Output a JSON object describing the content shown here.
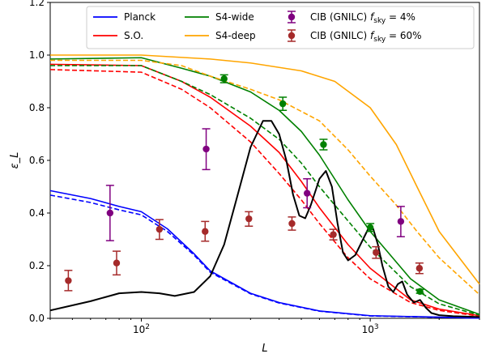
{
  "chart_data": {
    "type": "line",
    "xlabel": "L",
    "ylabel": "ε_L",
    "xscale": "log",
    "xlim": [
      40,
      3000
    ],
    "ylim": [
      0,
      1.2
    ],
    "x_ticks": [
      {
        "value": 100,
        "label": "10^2"
      },
      {
        "value": 1000,
        "label": "10^3"
      }
    ],
    "y_ticks": [
      0.0,
      0.2,
      0.4,
      0.6,
      0.8,
      1.0,
      1.2
    ],
    "grid": false,
    "legend_position": "top",
    "colors": {
      "Planck": "#0000ff",
      "S.O.": "#ff0000",
      "S4-wide": "#008000",
      "S4-deep": "#ffa500",
      "black": "#000000",
      "gnilc4": "#800080",
      "gnilc60": "#a52a2a"
    },
    "legend": [
      {
        "label": "Planck",
        "kind": "line",
        "color": "#0000ff"
      },
      {
        "label": "S.O.",
        "kind": "line",
        "color": "#ff0000"
      },
      {
        "label": "S4-wide",
        "kind": "line",
        "color": "#008000"
      },
      {
        "label": "S4-deep",
        "kind": "line",
        "color": "#ffa500"
      },
      {
        "label": "CIB (GNILC) f_sky = 4%",
        "kind": "errorbar",
        "color": "#800080"
      },
      {
        "label": "CIB (GNILC) f_sky = 60%",
        "kind": "errorbar",
        "color": "#a52a2a"
      }
    ],
    "series": [
      {
        "name": "Planck",
        "style": "solid",
        "color": "#0000ff",
        "points": [
          [
            40,
            0.485
          ],
          [
            60,
            0.455
          ],
          [
            80,
            0.425
          ],
          [
            100,
            0.405
          ],
          [
            130,
            0.34
          ],
          [
            170,
            0.245
          ],
          [
            200,
            0.18
          ],
          [
            300,
            0.095
          ],
          [
            400,
            0.06
          ],
          [
            600,
            0.028
          ],
          [
            1000,
            0.01
          ],
          [
            3000,
            0.001
          ]
        ]
      },
      {
        "name": "Planck",
        "style": "dashed",
        "color": "#0000ff",
        "points": [
          [
            40,
            0.468
          ],
          [
            60,
            0.44
          ],
          [
            80,
            0.412
          ],
          [
            100,
            0.393
          ],
          [
            130,
            0.33
          ],
          [
            170,
            0.24
          ],
          [
            200,
            0.175
          ],
          [
            300,
            0.093
          ],
          [
            400,
            0.058
          ],
          [
            600,
            0.027
          ],
          [
            1000,
            0.009
          ],
          [
            3000,
            0.001
          ]
        ]
      },
      {
        "name": "S.O.",
        "style": "solid",
        "color": "#ff0000",
        "points": [
          [
            40,
            0.965
          ],
          [
            100,
            0.96
          ],
          [
            150,
            0.9
          ],
          [
            200,
            0.84
          ],
          [
            300,
            0.73
          ],
          [
            400,
            0.63
          ],
          [
            500,
            0.52
          ],
          [
            600,
            0.42
          ],
          [
            800,
            0.28
          ],
          [
            1000,
            0.19
          ],
          [
            1500,
            0.07
          ],
          [
            2000,
            0.035
          ],
          [
            3000,
            0.01
          ]
        ]
      },
      {
        "name": "S.O.",
        "style": "dashed",
        "color": "#ff0000",
        "points": [
          [
            40,
            0.945
          ],
          [
            100,
            0.935
          ],
          [
            150,
            0.87
          ],
          [
            200,
            0.8
          ],
          [
            300,
            0.67
          ],
          [
            400,
            0.55
          ],
          [
            500,
            0.45
          ],
          [
            600,
            0.36
          ],
          [
            800,
            0.23
          ],
          [
            1000,
            0.15
          ],
          [
            1500,
            0.06
          ],
          [
            2000,
            0.03
          ],
          [
            3000,
            0.008
          ]
        ]
      },
      {
        "name": "S4-wide",
        "style": "solid",
        "color": "#008000",
        "points": [
          [
            40,
            0.985
          ],
          [
            100,
            0.99
          ],
          [
            150,
            0.95
          ],
          [
            200,
            0.92
          ],
          [
            300,
            0.86
          ],
          [
            400,
            0.79
          ],
          [
            500,
            0.71
          ],
          [
            600,
            0.62
          ],
          [
            800,
            0.45
          ],
          [
            1000,
            0.33
          ],
          [
            1500,
            0.15
          ],
          [
            2000,
            0.07
          ],
          [
            3000,
            0.015
          ]
        ]
      },
      {
        "name": "S4-wide",
        "style": "dashed",
        "color": "#008000",
        "points": [
          [
            40,
            0.96
          ],
          [
            100,
            0.96
          ],
          [
            150,
            0.9
          ],
          [
            200,
            0.85
          ],
          [
            300,
            0.76
          ],
          [
            400,
            0.68
          ],
          [
            500,
            0.59
          ],
          [
            600,
            0.5
          ],
          [
            800,
            0.37
          ],
          [
            1000,
            0.27
          ],
          [
            1500,
            0.12
          ],
          [
            2000,
            0.055
          ],
          [
            3000,
            0.012
          ]
        ]
      },
      {
        "name": "S4-deep",
        "style": "solid",
        "color": "#ffa500",
        "points": [
          [
            40,
            1.0
          ],
          [
            100,
            1.0
          ],
          [
            200,
            0.985
          ],
          [
            300,
            0.97
          ],
          [
            500,
            0.94
          ],
          [
            700,
            0.9
          ],
          [
            1000,
            0.8
          ],
          [
            1300,
            0.66
          ],
          [
            1600,
            0.5
          ],
          [
            2000,
            0.33
          ],
          [
            3000,
            0.13
          ]
        ]
      },
      {
        "name": "S4-deep",
        "style": "dashed",
        "color": "#ffa500",
        "points": [
          [
            40,
            0.98
          ],
          [
            100,
            0.98
          ],
          [
            150,
            0.96
          ],
          [
            200,
            0.92
          ],
          [
            300,
            0.87
          ],
          [
            400,
            0.83
          ],
          [
            600,
            0.75
          ],
          [
            800,
            0.64
          ],
          [
            1000,
            0.54
          ],
          [
            1300,
            0.43
          ],
          [
            1600,
            0.33
          ],
          [
            2000,
            0.23
          ],
          [
            3000,
            0.09
          ]
        ]
      },
      {
        "name": "",
        "style": "solid",
        "color": "#000000",
        "width": 2,
        "points": [
          [
            40,
            0.03
          ],
          [
            60,
            0.065
          ],
          [
            80,
            0.095
          ],
          [
            100,
            0.1
          ],
          [
            120,
            0.095
          ],
          [
            140,
            0.085
          ],
          [
            170,
            0.1
          ],
          [
            200,
            0.16
          ],
          [
            230,
            0.28
          ],
          [
            260,
            0.45
          ],
          [
            300,
            0.65
          ],
          [
            340,
            0.75
          ],
          [
            370,
            0.75
          ],
          [
            400,
            0.7
          ],
          [
            430,
            0.6
          ],
          [
            460,
            0.47
          ],
          [
            490,
            0.39
          ],
          [
            520,
            0.38
          ],
          [
            550,
            0.43
          ],
          [
            600,
            0.53
          ],
          [
            640,
            0.56
          ],
          [
            680,
            0.5
          ],
          [
            720,
            0.36
          ],
          [
            760,
            0.25
          ],
          [
            800,
            0.22
          ],
          [
            860,
            0.24
          ],
          [
            930,
            0.3
          ],
          [
            980,
            0.34
          ],
          [
            1030,
            0.34
          ],
          [
            1080,
            0.28
          ],
          [
            1130,
            0.2
          ],
          [
            1200,
            0.12
          ],
          [
            1260,
            0.1
          ],
          [
            1320,
            0.13
          ],
          [
            1380,
            0.14
          ],
          [
            1450,
            0.09
          ],
          [
            1550,
            0.06
          ],
          [
            1650,
            0.07
          ],
          [
            1750,
            0.04
          ],
          [
            1850,
            0.02
          ],
          [
            2000,
            0.012
          ],
          [
            2300,
            0.008
          ],
          [
            3000,
            0.005
          ]
        ]
      }
    ],
    "errorbars": [
      {
        "name": "CIB (GNILC) f_sky = 4%",
        "color": "#800080",
        "points": [
          {
            "x": 73,
            "y": 0.4,
            "lo": 0.295,
            "hi": 0.505
          },
          {
            "x": 192,
            "y": 0.643,
            "lo": 0.565,
            "hi": 0.72
          },
          {
            "x": 530,
            "y": 0.475,
            "lo": 0.42,
            "hi": 0.53
          },
          {
            "x": 1360,
            "y": 0.368,
            "lo": 0.31,
            "hi": 0.425
          }
        ]
      },
      {
        "name": "CIB (GNILC) f_sky = 60%",
        "color": "#a52a2a",
        "points": [
          {
            "x": 48,
            "y": 0.143,
            "lo": 0.105,
            "hi": 0.182
          },
          {
            "x": 78,
            "y": 0.21,
            "lo": 0.165,
            "hi": 0.255
          },
          {
            "x": 120,
            "y": 0.338,
            "lo": 0.3,
            "hi": 0.375
          },
          {
            "x": 190,
            "y": 0.33,
            "lo": 0.293,
            "hi": 0.368
          },
          {
            "x": 295,
            "y": 0.378,
            "lo": 0.35,
            "hi": 0.405
          },
          {
            "x": 455,
            "y": 0.36,
            "lo": 0.335,
            "hi": 0.385
          },
          {
            "x": 690,
            "y": 0.318,
            "lo": 0.298,
            "hi": 0.338
          },
          {
            "x": 1060,
            "y": 0.25,
            "lo": 0.228,
            "hi": 0.272
          },
          {
            "x": 1640,
            "y": 0.19,
            "lo": 0.17,
            "hi": 0.21
          }
        ]
      },
      {
        "name": "green points",
        "color": "#008000",
        "points": [
          {
            "x": 230,
            "y": 0.91,
            "lo": 0.895,
            "hi": 0.925
          },
          {
            "x": 415,
            "y": 0.815,
            "lo": 0.79,
            "hi": 0.84
          },
          {
            "x": 625,
            "y": 0.66,
            "lo": 0.64,
            "hi": 0.68
          },
          {
            "x": 1000,
            "y": 0.345,
            "lo": 0.33,
            "hi": 0.36
          },
          {
            "x": 1650,
            "y": 0.102,
            "lo": 0.095,
            "hi": 0.11
          }
        ]
      }
    ]
  }
}
